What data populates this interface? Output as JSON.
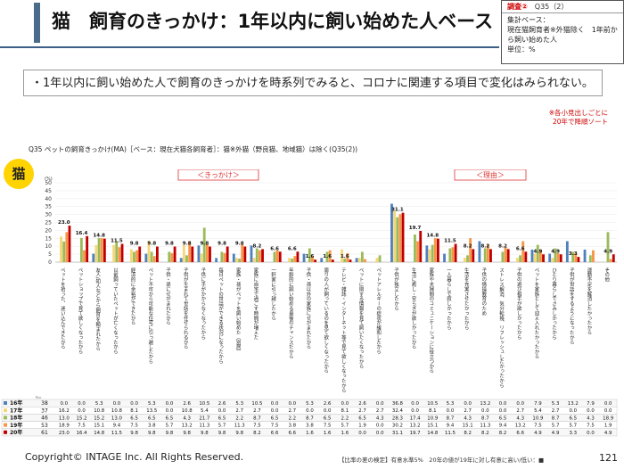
{
  "page": {
    "title": "猫　飼育のきっかけ：1年以内に飼い始めた人ベース",
    "note_box": {
      "tag": "調査②",
      "code": "Q35（2）",
      "lines": [
        "集計ベース：",
        "現在猫飼育者※外猫除く　1年前か",
        "ら飼い始めた人",
        "単位：%"
      ]
    },
    "summary": "・1年以内に飼い始めた人で飼育のきっかけを時系列でみると、コロナに関連する項目で変化はみられない。",
    "sort_note": [
      "※各小見出しごとに",
      "20年で降順ソート"
    ],
    "question_label": "Q35 ペットの飼育きっかけ(MA)［ベース：現在犬猫各飼育者］：猫※外猫（野良猫、地域猫）は除く(Q35(2))",
    "badge": "猫",
    "group_kikkake": "＜きっかけ＞",
    "group_riyu": "＜理由＞",
    "n_label": "n=",
    "footer_copyright": "Copyright© INTAGE Inc. All Rights Reserved.",
    "footer_legend": "【比率の差の検定】有意水準5%　20年の値が19年に対し有意に高い/低い：■",
    "page_number": "121"
  },
  "chart_data": {
    "type": "bar",
    "y_unit": "(%)",
    "ylim": [
      0,
      50
    ],
    "yticks": [
      0,
      5,
      10,
      15,
      20,
      25,
      30,
      35,
      40,
      45,
      50
    ],
    "colors": {
      "16年": "#4f81bd",
      "17年": "#f5d77a",
      "18年": "#9bbb59",
      "19年": "#f79646",
      "20年": "#c00000"
    },
    "categories": [
      "ペットを拾った、迷い込んできたから",
      "ペットショップで見て欲しくなったから",
      "友人/知人などから飼育を頼まれたから",
      "以前飼っていたペットが亡くなったから",
      "経済的に余裕ができたから",
      "ペット不可から可能な住宅に引っ越したから",
      "子供・孫にせがまれたから",
      "子供が生まれて世話を任せられるから",
      "子供に手がかからなくなったから",
      "毎日ペットの世話ができる状況になったから",
      "家族・孫がペットを飼い始めた（別居）",
      "家族に自宅で過ごす時間が増えた",
      "一軒家に引っ越したから",
      "年齢的に飼い始める最後のチャンスだから",
      "子供・孫以外の家族にせがまれたから",
      "周りの人が飼っているのを見て欲しくなったから",
      "テレビ・雑誌・インターネット等で見て欲しくなったから",
      "ペットに関する情報を見て飼いたくなったから",
      "ペットアレルギーの症状が緩和したから",
      "子供が独立したから",
      "生活に癒し・安らぎが欲しかったから",
      "家族や夫婦間のコミュニケーションに役立つから",
      "一人暮らしで寂しかったから",
      "生活を充実させたかったから",
      "子供の情操教育のため",
      "ストレス解消、気分転換、リフレッシュしたかったから",
      "子供の遊び相手が欲しかったから",
      "ペットを家族として迎え入れたかったから",
      "ひとり暮らしでさみしかったから",
      "子供が世話をするようになったから",
      "運動不足を解消したかったから",
      "その他"
    ],
    "series": [
      {
        "name": "16年",
        "n": 38,
        "values": [
          0.0,
          0.0,
          5.3,
          0.0,
          0.0,
          5.3,
          0.0,
          2.6,
          10.5,
          2.6,
          5.3,
          10.5,
          0.0,
          0.0,
          5.3,
          2.6,
          0.0,
          2.6,
          0.0,
          36.8,
          0.0,
          10.5,
          5.3,
          0.0,
          13.2,
          0.0,
          0.0,
          7.9,
          5.3,
          13.2,
          7.9,
          0.0
        ]
      },
      {
        "name": "17年",
        "n": 37,
        "values": [
          16.2,
          0.0,
          10.8,
          10.8,
          8.1,
          13.5,
          0.0,
          10.8,
          5.4,
          0.0,
          2.7,
          2.7,
          0.0,
          2.7,
          0.0,
          0.0,
          8.1,
          2.7,
          2.7,
          32.4,
          0.0,
          8.1,
          0.0,
          2.7,
          0.0,
          0.0,
          2.7,
          5.4,
          2.7,
          0.0,
          0.0,
          0.0
        ]
      },
      {
        "name": "18年",
        "n": 46,
        "values": [
          13.0,
          15.2,
          15.2,
          13.0,
          6.5,
          6.5,
          6.5,
          4.3,
          21.7,
          6.5,
          2.2,
          8.7,
          6.5,
          2.2,
          8.7,
          6.5,
          2.2,
          6.5,
          4.3,
          28.3,
          17.4,
          10.9,
          8.7,
          4.3,
          8.7,
          6.5,
          4.3,
          10.9,
          8.7,
          6.5,
          4.3,
          18.9
        ]
      },
      {
        "name": "19年",
        "n": 53,
        "values": [
          18.9,
          7.5,
          15.1,
          9.4,
          7.5,
          3.8,
          5.7,
          13.2,
          11.3,
          5.7,
          11.3,
          7.5,
          7.5,
          3.8,
          3.8,
          7.5,
          5.7,
          1.9,
          0.0,
          30.2,
          13.2,
          15.1,
          9.4,
          15.1,
          11.3,
          9.4,
          13.2,
          7.5,
          5.7,
          5.7,
          7.5,
          1.9
        ]
      },
      {
        "name": "20年",
        "n": 61,
        "values": [
          23.0,
          16.4,
          14.8,
          11.5,
          9.8,
          9.8,
          9.8,
          9.8,
          9.8,
          9.8,
          9.8,
          8.2,
          6.6,
          6.6,
          1.6,
          1.6,
          1.6,
          0.0,
          0.0,
          31.1,
          19.7,
          14.8,
          11.5,
          8.2,
          8.2,
          8.2,
          6.6,
          4.9,
          4.9,
          3.3,
          0.0,
          4.9
        ]
      }
    ]
  }
}
